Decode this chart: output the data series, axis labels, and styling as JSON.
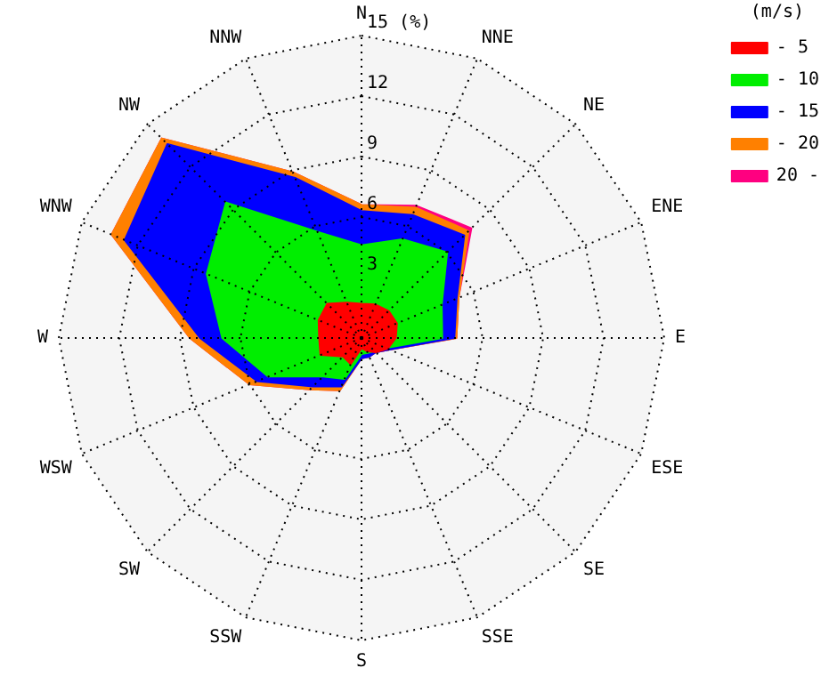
{
  "chart_data": {
    "type": "radar",
    "legend_title": "(m/s)",
    "legend": "top right",
    "categories": [
      "N",
      "NNE",
      "NE",
      "ENE",
      "E",
      "ESE",
      "SE",
      "SSE",
      "S",
      "SSW",
      "SW",
      "WSW",
      "W",
      "WNW",
      "NW",
      "NNW"
    ],
    "series": [
      {
        "name": "- 5",
        "color": "#ff0000",
        "values": [
          1.7,
          1.8,
          1.9,
          1.9,
          1.7,
          1.4,
          1.0,
          0.7,
          0.5,
          1.4,
          1.3,
          2.2,
          2.1,
          2.3,
          2.4,
          1.9
        ]
      },
      {
        "name": "- 10",
        "color": "#00ee00",
        "values": [
          4.6,
          5.3,
          6.0,
          4.3,
          4.0,
          1.3,
          0.9,
          0.8,
          0.8,
          2.2,
          2.7,
          5.0,
          6.9,
          8.3,
          9.5,
          5.7
        ]
      },
      {
        "name": "- 15",
        "color": "#0000ff",
        "values": [
          6.3,
          6.6,
          7.2,
          5.1,
          4.6,
          1.5,
          1.0,
          1.0,
          1.0,
          2.6,
          3.4,
          5.6,
          8.0,
          12.7,
          13.6,
          8.6
        ]
      },
      {
        "name": "- 20",
        "color": "#ff8000",
        "values": [
          6.6,
          7.0,
          7.5,
          5.2,
          4.7,
          1.5,
          1.0,
          1.0,
          1.0,
          2.8,
          3.6,
          6.0,
          8.5,
          13.4,
          14.0,
          8.9
        ]
      },
      {
        "name": "20 -",
        "color": "#ff0080",
        "values": [
          6.6,
          7.1,
          7.7,
          5.2,
          4.7,
          1.5,
          1.0,
          1.0,
          1.0,
          2.8,
          3.6,
          6.0,
          8.5,
          13.4,
          14.0,
          8.9
        ]
      }
    ],
    "ylim": [
      0,
      15
    ],
    "yticks": [
      3,
      6,
      9,
      12,
      {
        "value": 15,
        "label": "15 (%)"
      }
    ],
    "grid": true,
    "line_style": "dotted"
  }
}
